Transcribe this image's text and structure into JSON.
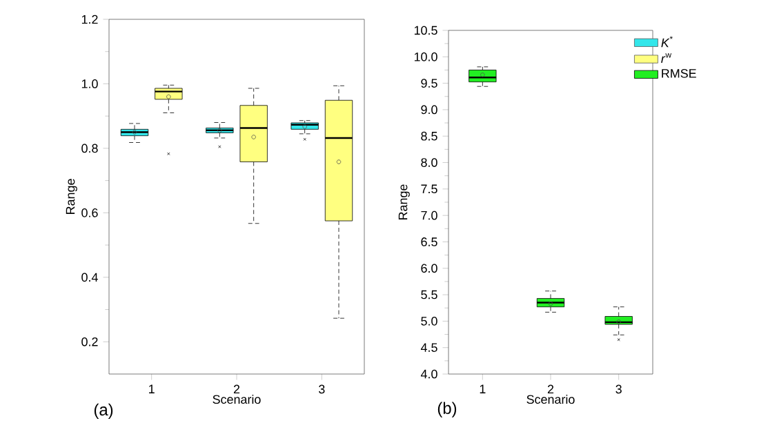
{
  "chart_data": [
    {
      "type": "box",
      "categories": [
        "1",
        "2",
        "3"
      ],
      "xlabel": "Scenario",
      "ylabel": "Range",
      "annotations": [
        "(a)"
      ],
      "ylim": [
        0.1,
        1.2
      ],
      "yticks": [
        {
          "value": 0.2,
          "label": "0.2"
        },
        {
          "value": 0.4,
          "label": "0.4"
        },
        {
          "value": 0.6,
          "label": "0.6"
        },
        {
          "value": 0.8,
          "label": "0.8"
        },
        {
          "value": 1.0,
          "label": "1.0"
        },
        {
          "value": 1.2,
          "label": "1.2"
        }
      ],
      "series": [
        {
          "color": "#33e6ea",
          "boxes": [
            {
              "low": 0.818,
              "q1": 0.839,
              "median": 0.85,
              "q3": 0.859,
              "high": 0.877,
              "mean": 0.85
            },
            {
              "low": 0.832,
              "q1": 0.848,
              "median": 0.856,
              "q3": 0.863,
              "high": 0.88,
              "mean": 0.855,
              "outliers": [
                0.805
              ]
            },
            {
              "low": 0.845,
              "q1": 0.859,
              "median": 0.873,
              "q3": 0.879,
              "high": 0.886,
              "mean": 0.867,
              "outliers": [
                0.828
              ]
            }
          ]
        },
        {
          "color": "#ffff80",
          "boxes": [
            {
              "low": 0.91,
              "q1": 0.952,
              "median": 0.976,
              "q3": 0.986,
              "high": 0.996,
              "mean": 0.96,
              "outliers": [
                0.783
              ]
            },
            {
              "low": 0.567,
              "q1": 0.758,
              "median": 0.863,
              "q3": 0.933,
              "high": 0.986,
              "mean": 0.835
            },
            {
              "low": 0.273,
              "q1": 0.575,
              "median": 0.832,
              "q3": 0.949,
              "high": 0.994,
              "mean": 0.758
            }
          ]
        }
      ]
    },
    {
      "type": "box",
      "categories": [
        "1",
        "2",
        "3"
      ],
      "xlabel": "Scenario",
      "ylabel": "Range",
      "annotations": [
        "(b)"
      ],
      "legend": "top right",
      "ylim": [
        4.0,
        10.5
      ],
      "yticks": [
        {
          "value": 4.0,
          "label": "4.0"
        },
        {
          "value": 4.5,
          "label": "4.5"
        },
        {
          "value": 5.0,
          "label": "5.0"
        },
        {
          "value": 5.5,
          "label": "5.5"
        },
        {
          "value": 6.0,
          "label": "6.0"
        },
        {
          "value": 6.5,
          "label": "6.5"
        },
        {
          "value": 7.0,
          "label": "7.0"
        },
        {
          "value": 7.5,
          "label": "7.5"
        },
        {
          "value": 8.0,
          "label": "8.0"
        },
        {
          "value": 8.5,
          "label": "8.5"
        },
        {
          "value": 9.0,
          "label": "9.0"
        },
        {
          "value": 9.5,
          "label": "9.5"
        },
        {
          "value": 10.0,
          "label": "10.0"
        },
        {
          "value": 10.5,
          "label": "10.5"
        }
      ],
      "series": [
        {
          "name": "*K*$^{*}$",
          "color": "#33e6ea",
          "boxes": [
            null,
            null,
            null
          ]
        },
        {
          "name": "*r*$^{w}$",
          "color": "#ffff80",
          "boxes": [
            null,
            null,
            null
          ]
        },
        {
          "name": "RMSE",
          "color": "#22ee22",
          "boxes": [
            {
              "low": 9.44,
              "q1": 9.525,
              "median": 9.61,
              "q3": 9.75,
              "high": 9.81,
              "mean": 9.66
            },
            {
              "low": 5.17,
              "q1": 5.27,
              "median": 5.35,
              "q3": 5.43,
              "high": 5.57,
              "mean": 5.33
            },
            {
              "low": 4.74,
              "q1": 4.94,
              "median": 4.98,
              "q3": 5.09,
              "high": 5.27,
              "mean": 4.99,
              "outliers": [
                4.65
              ]
            }
          ]
        }
      ]
    }
  ]
}
